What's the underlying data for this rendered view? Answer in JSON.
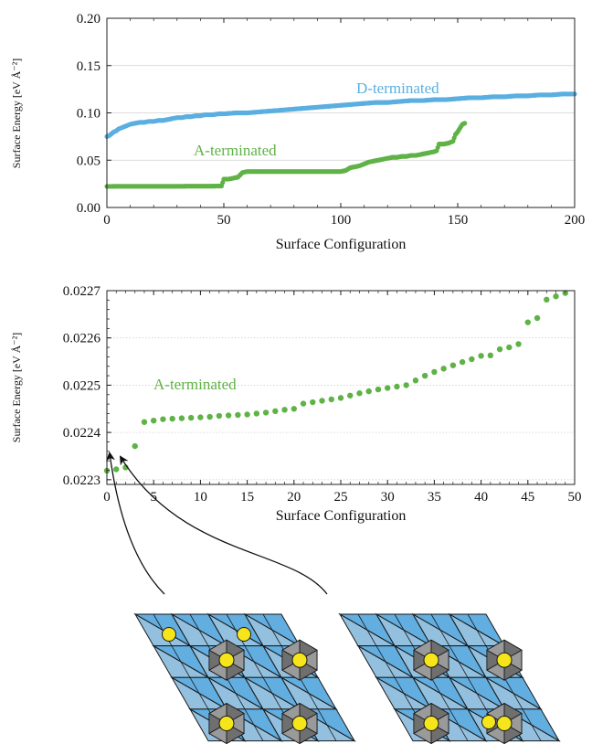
{
  "chart_data": [
    {
      "type": "scatter",
      "xlabel": "Surface Configuration",
      "ylabel": "Surface Energy [eV Å⁻²]",
      "xlim": [
        0,
        200
      ],
      "ylim": [
        0,
        0.2
      ],
      "xticks": [
        "0",
        "50",
        "100",
        "150",
        "200"
      ],
      "yticks": [
        "0.00",
        "0.05",
        "0.10",
        "0.15",
        "0.20"
      ],
      "grid": "horizontal",
      "series": [
        {
          "name": "D-terminated",
          "color": "#5aafe0",
          "points": [
            [
              0,
              0.075
            ],
            [
              1,
              0.076
            ],
            [
              2,
              0.078
            ],
            [
              3,
              0.08
            ],
            [
              4,
              0.081
            ],
            [
              5,
              0.083
            ],
            [
              6,
              0.084
            ],
            [
              7,
              0.085
            ],
            [
              8,
              0.086
            ],
            [
              9,
              0.087
            ],
            [
              10,
              0.088
            ],
            [
              12,
              0.089
            ],
            [
              14,
              0.09
            ],
            [
              16,
              0.09
            ],
            [
              18,
              0.091
            ],
            [
              20,
              0.091
            ],
            [
              22,
              0.092
            ],
            [
              24,
              0.092
            ],
            [
              26,
              0.093
            ],
            [
              28,
              0.094
            ],
            [
              30,
              0.095
            ],
            [
              32,
              0.095
            ],
            [
              34,
              0.096
            ],
            [
              36,
              0.096
            ],
            [
              38,
              0.097
            ],
            [
              40,
              0.097
            ],
            [
              42,
              0.098
            ],
            [
              45,
              0.098
            ],
            [
              48,
              0.099
            ],
            [
              50,
              0.099
            ],
            [
              55,
              0.1
            ],
            [
              60,
              0.1
            ],
            [
              65,
              0.101
            ],
            [
              70,
              0.102
            ],
            [
              75,
              0.103
            ],
            [
              80,
              0.104
            ],
            [
              85,
              0.105
            ],
            [
              90,
              0.106
            ],
            [
              95,
              0.107
            ],
            [
              100,
              0.108
            ],
            [
              105,
              0.109
            ],
            [
              110,
              0.11
            ],
            [
              115,
              0.111
            ],
            [
              120,
              0.111
            ],
            [
              125,
              0.112
            ],
            [
              130,
              0.113
            ],
            [
              135,
              0.113
            ],
            [
              140,
              0.114
            ],
            [
              145,
              0.114
            ],
            [
              150,
              0.115
            ],
            [
              155,
              0.116
            ],
            [
              160,
              0.116
            ],
            [
              165,
              0.117
            ],
            [
              170,
              0.117
            ],
            [
              175,
              0.118
            ],
            [
              180,
              0.118
            ],
            [
              185,
              0.119
            ],
            [
              190,
              0.119
            ],
            [
              195,
              0.12
            ],
            [
              200,
              0.12
            ]
          ]
        },
        {
          "name": "A-terminated",
          "color": "#5fb246",
          "points": [
            [
              0,
              0.0223
            ],
            [
              2,
              0.0223
            ],
            [
              4,
              0.0224
            ],
            [
              6,
              0.0224
            ],
            [
              8,
              0.0224
            ],
            [
              10,
              0.0224
            ],
            [
              12,
              0.0224
            ],
            [
              14,
              0.0224
            ],
            [
              16,
              0.0224
            ],
            [
              18,
              0.0224
            ],
            [
              20,
              0.0224
            ],
            [
              22,
              0.0224
            ],
            [
              24,
              0.0224
            ],
            [
              26,
              0.0224
            ],
            [
              28,
              0.0224
            ],
            [
              30,
              0.0224
            ],
            [
              32,
              0.0224
            ],
            [
              34,
              0.0225
            ],
            [
              36,
              0.0225
            ],
            [
              38,
              0.0225
            ],
            [
              40,
              0.0225
            ],
            [
              42,
              0.0225
            ],
            [
              44,
              0.0225
            ],
            [
              46,
              0.0226
            ],
            [
              48,
              0.0227
            ],
            [
              49,
              0.0227
            ],
            [
              50,
              0.03
            ],
            [
              52,
              0.03
            ],
            [
              54,
              0.031
            ],
            [
              56,
              0.032
            ],
            [
              58,
              0.037
            ],
            [
              60,
              0.038
            ],
            [
              62,
              0.038
            ],
            [
              64,
              0.038
            ],
            [
              66,
              0.038
            ],
            [
              68,
              0.038
            ],
            [
              70,
              0.038
            ],
            [
              72,
              0.038
            ],
            [
              74,
              0.038
            ],
            [
              76,
              0.038
            ],
            [
              78,
              0.038
            ],
            [
              80,
              0.038
            ],
            [
              82,
              0.038
            ],
            [
              84,
              0.038
            ],
            [
              86,
              0.038
            ],
            [
              88,
              0.038
            ],
            [
              90,
              0.038
            ],
            [
              92,
              0.038
            ],
            [
              94,
              0.038
            ],
            [
              96,
              0.038
            ],
            [
              98,
              0.038
            ],
            [
              100,
              0.038
            ],
            [
              102,
              0.039
            ],
            [
              104,
              0.042
            ],
            [
              106,
              0.043
            ],
            [
              108,
              0.044
            ],
            [
              110,
              0.046
            ],
            [
              112,
              0.048
            ],
            [
              114,
              0.049
            ],
            [
              116,
              0.05
            ],
            [
              118,
              0.051
            ],
            [
              120,
              0.052
            ],
            [
              122,
              0.053
            ],
            [
              124,
              0.053
            ],
            [
              126,
              0.054
            ],
            [
              128,
              0.054
            ],
            [
              130,
              0.055
            ],
            [
              132,
              0.055
            ],
            [
              134,
              0.056
            ],
            [
              136,
              0.057
            ],
            [
              138,
              0.058
            ],
            [
              140,
              0.059
            ],
            [
              141,
              0.06
            ],
            [
              142,
              0.067
            ],
            [
              144,
              0.067
            ],
            [
              146,
              0.068
            ],
            [
              148,
              0.07
            ],
            [
              149,
              0.077
            ],
            [
              150,
              0.08
            ],
            [
              151,
              0.084
            ],
            [
              152,
              0.088
            ],
            [
              153,
              0.089
            ]
          ]
        }
      ]
    },
    {
      "type": "scatter",
      "xlabel": "Surface Configuration",
      "ylabel": "Surface Energy [eV Å⁻²]",
      "xlim": [
        0,
        50
      ],
      "ylim": [
        0.02229,
        0.0227
      ],
      "xticks": [
        "0",
        "5",
        "10",
        "15",
        "20",
        "25",
        "30",
        "35",
        "40",
        "45",
        "50"
      ],
      "yticks": [
        "0.0223",
        "0.0224",
        "0.0225",
        "0.0226",
        "0.0227"
      ],
      "grid": "horizontal-dotted",
      "series": [
        {
          "name": "A-terminated",
          "color": "#5fb246",
          "points": [
            [
              0,
              0.022319
            ],
            [
              1,
              0.022322
            ],
            [
              2,
              0.022326
            ],
            [
              3,
              0.022371
            ],
            [
              4,
              0.022422
            ],
            [
              5,
              0.022425
            ],
            [
              6,
              0.022428
            ],
            [
              7,
              0.022429
            ],
            [
              8,
              0.02243
            ],
            [
              9,
              0.022431
            ],
            [
              10,
              0.022432
            ],
            [
              11,
              0.022433
            ],
            [
              12,
              0.022435
            ],
            [
              13,
              0.022436
            ],
            [
              14,
              0.022437
            ],
            [
              15,
              0.022438
            ],
            [
              16,
              0.02244
            ],
            [
              17,
              0.022442
            ],
            [
              18,
              0.022445
            ],
            [
              19,
              0.022448
            ],
            [
              20,
              0.02245
            ],
            [
              21,
              0.022461
            ],
            [
              22,
              0.022464
            ],
            [
              23,
              0.022467
            ],
            [
              24,
              0.02247
            ],
            [
              25,
              0.022473
            ],
            [
              26,
              0.022478
            ],
            [
              27,
              0.022483
            ],
            [
              28,
              0.022487
            ],
            [
              29,
              0.022491
            ],
            [
              30,
              0.022494
            ],
            [
              31,
              0.022497
            ],
            [
              32,
              0.0225
            ],
            [
              33,
              0.02251
            ],
            [
              34,
              0.02252
            ],
            [
              35,
              0.022528
            ],
            [
              36,
              0.022535
            ],
            [
              37,
              0.022542
            ],
            [
              38,
              0.022549
            ],
            [
              39,
              0.022555
            ],
            [
              40,
              0.022562
            ],
            [
              41,
              0.022563
            ],
            [
              42,
              0.022576
            ],
            [
              43,
              0.02258
            ],
            [
              44,
              0.022587
            ],
            [
              45,
              0.022633
            ],
            [
              46,
              0.022642
            ],
            [
              47,
              0.022681
            ],
            [
              48,
              0.022688
            ],
            [
              49,
              0.022695
            ]
          ]
        }
      ]
    }
  ]
}
